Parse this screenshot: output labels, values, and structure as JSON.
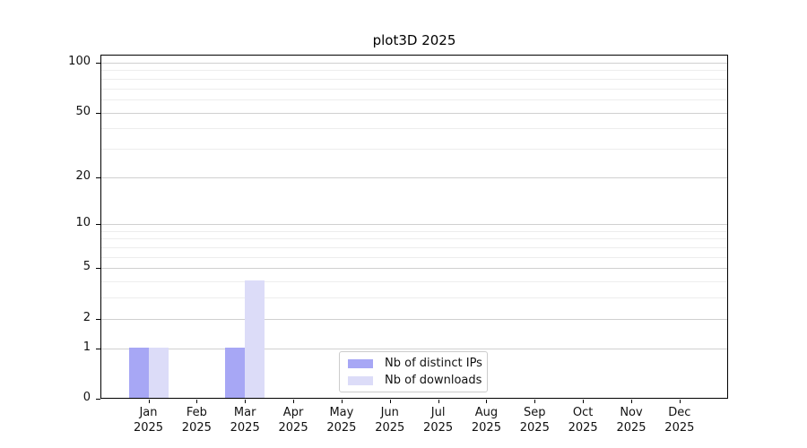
{
  "chart_data": {
    "type": "bar",
    "title": "plot3D 2025",
    "scale": "log1p",
    "categories": [
      "Jan",
      "Feb",
      "Mar",
      "Apr",
      "May",
      "Jun",
      "Jul",
      "Aug",
      "Sep",
      "Oct",
      "Nov",
      "Dec"
    ],
    "category_sub": "2025",
    "series": [
      {
        "name": "Nb of distinct IPs",
        "color": "#a7a7f5",
        "values": [
          1,
          0,
          1,
          0,
          0,
          0,
          0,
          0,
          0,
          0,
          0,
          0
        ]
      },
      {
        "name": "Nb of downloads",
        "color": "#dcdcf8",
        "values": [
          1,
          0,
          4,
          0,
          0,
          0,
          0,
          0,
          0,
          0,
          0,
          0
        ]
      }
    ],
    "yticks": [
      0,
      1,
      2,
      5,
      10,
      20,
      50,
      100
    ],
    "minor_gridlines": [
      3,
      4,
      6,
      7,
      8,
      9,
      30,
      40,
      60,
      70,
      80,
      90
    ],
    "ylim": [
      0,
      112
    ],
    "xlabel": "",
    "ylabel": "",
    "grid": "on",
    "legend_position": "inside lower-center",
    "colors": {
      "major_grid": "#d0d0d0",
      "minor_grid": "#ededed",
      "axis": "#000000",
      "text": "#111111",
      "legend_border": "#cccccc",
      "background": "#ffffff"
    }
  }
}
